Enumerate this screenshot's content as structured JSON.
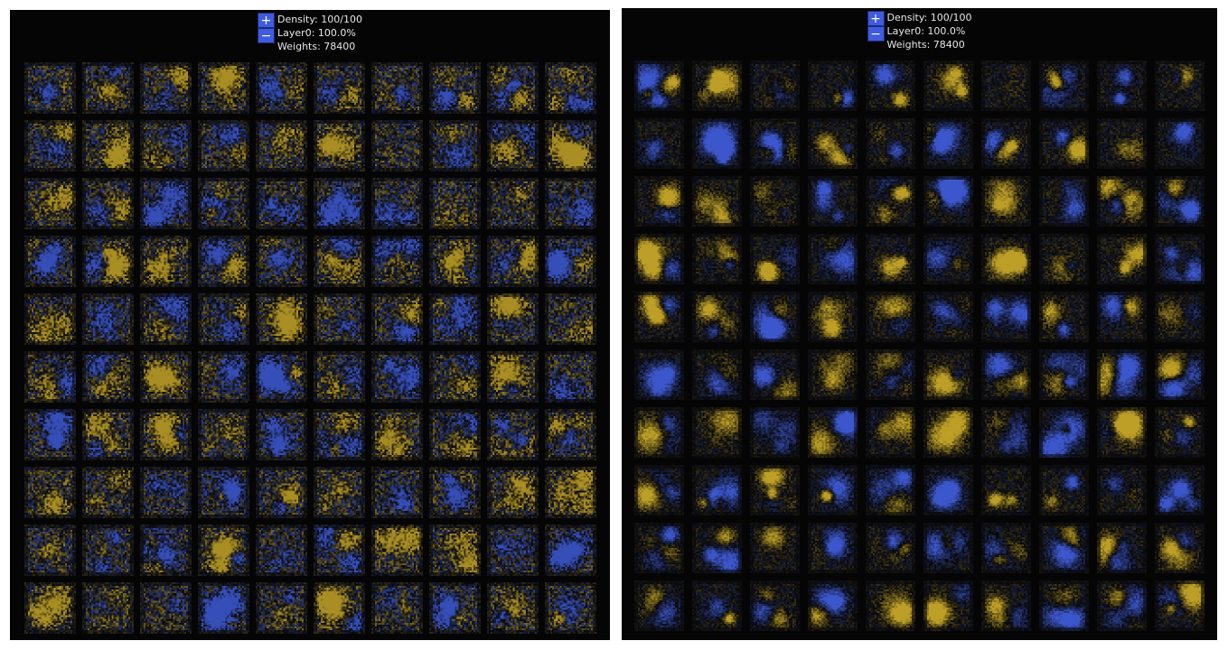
{
  "colors": {
    "background": "#050505",
    "positive": "#c9a820",
    "negative": "#3a58d8",
    "button": "#3f5be0"
  },
  "panels": [
    {
      "id": "left",
      "zoom_in_label": "+",
      "zoom_out_label": "−",
      "density": "Density: 100/100",
      "layer": "Layer0: 100.0%",
      "weights": "Weights: 78400",
      "grid": {
        "rows": 10,
        "cols": 10,
        "style": "noisy"
      }
    },
    {
      "id": "right",
      "zoom_in_label": "+",
      "zoom_out_label": "−",
      "density": "Density: 100/100",
      "layer": "Layer0: 100.0%",
      "weights": "Weights: 78400",
      "grid": {
        "rows": 10,
        "cols": 10,
        "style": "smooth"
      }
    }
  ]
}
